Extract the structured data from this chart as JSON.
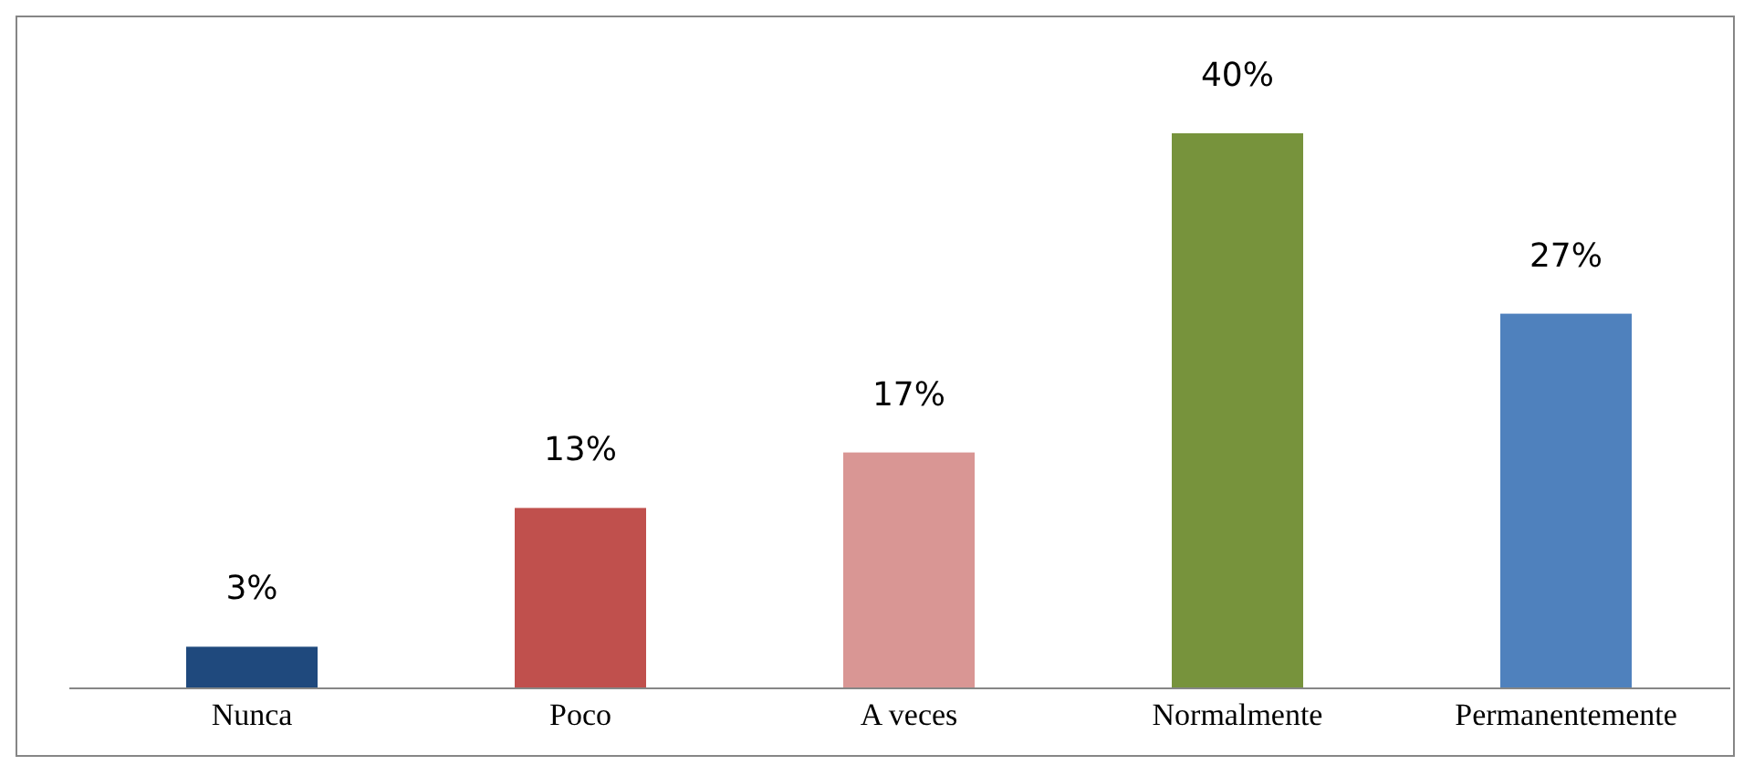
{
  "chart_data": {
    "type": "bar",
    "categories": [
      "Nunca",
      "Poco",
      "A veces",
      "Normalmente",
      "Permanentemente"
    ],
    "values": [
      3,
      13,
      17,
      40,
      27
    ],
    "colors": [
      "#1f497d",
      "#c0504d",
      "#d99694",
      "#77933c",
      "#4f81bd"
    ],
    "value_labels": [
      "3%",
      "13%",
      "17%",
      "40%",
      "27%"
    ]
  }
}
